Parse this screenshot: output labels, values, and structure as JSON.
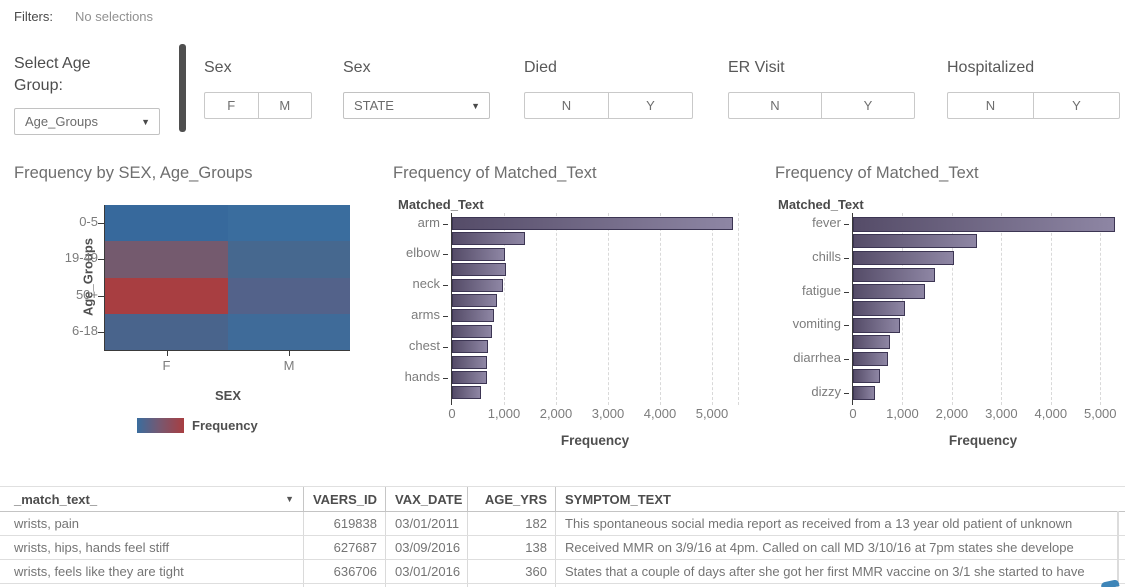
{
  "filters_bar": {
    "label": "Filters:",
    "value": "No selections"
  },
  "controls": {
    "age_group": {
      "label": "Select Age Group:",
      "value": "Age_Groups"
    },
    "sex_segmented": {
      "label": "Sex",
      "options": [
        "F",
        "M"
      ]
    },
    "sex_dropdown": {
      "label": "Sex",
      "value": "STATE"
    },
    "died": {
      "label": "Died",
      "options": [
        "N",
        "Y"
      ]
    },
    "er_visit": {
      "label": "ER Visit",
      "options": [
        "N",
        "Y"
      ]
    },
    "hospitalized": {
      "label": "Hospitalized",
      "options": [
        "N",
        "Y"
      ]
    }
  },
  "chart_data": [
    {
      "type": "heatmap",
      "title": "Frequency by SEX, Age_Groups",
      "xlabel": "SEX",
      "ylabel": "Age_Groups",
      "x": [
        "F",
        "M"
      ],
      "y": [
        "0-5",
        "19-49",
        "50+",
        "6-18"
      ],
      "cell_colors": [
        [
          "#37699c",
          "#3a6d9e"
        ],
        [
          "#745a6e",
          "#46688f"
        ],
        [
          "#a83e41",
          "#53628a"
        ],
        [
          "#49648c",
          "#3f6b99"
        ]
      ],
      "legend": {
        "label": "Frequency",
        "gradient": [
          "#3a6d9e",
          "#79576f",
          "#a83e41"
        ]
      }
    },
    {
      "type": "bar",
      "title": "Frequency of Matched_Text",
      "axis_field": "Matched_Text",
      "xlabel": "Frequency",
      "categories": [
        "arm",
        "",
        "elbow",
        "",
        "neck",
        "",
        "arms",
        "",
        "chest",
        "",
        "hands",
        ""
      ],
      "values": [
        5400,
        1400,
        1020,
        1040,
        990,
        860,
        810,
        770,
        700,
        670,
        670,
        560
      ],
      "xticks": [
        "0",
        "1,000",
        "2,000",
        "3,000",
        "4,000",
        "5,000"
      ],
      "xtick_values": [
        0,
        1000,
        2000,
        3000,
        4000,
        5000
      ],
      "xlim": [
        0,
        5500
      ],
      "grid": true,
      "legend_position": "none"
    },
    {
      "type": "bar",
      "title": "Frequency of Matched_Text",
      "axis_field": "Matched_Text",
      "xlabel": "Frequency",
      "categories": [
        "fever",
        "",
        "chills",
        "",
        "fatigue",
        "",
        "vomiting",
        "",
        "diarrhea",
        "",
        "dizzy"
      ],
      "values": [
        5300,
        2500,
        2050,
        1650,
        1450,
        1050,
        950,
        750,
        700,
        550,
        450
      ],
      "xticks": [
        "0",
        "1,000",
        "2,000",
        "3,000",
        "4,000",
        "5,000"
      ],
      "xtick_values": [
        0,
        1000,
        2000,
        3000,
        4000,
        5000
      ],
      "xlim": [
        0,
        5500
      ],
      "grid": true,
      "legend_position": "none"
    }
  ],
  "table": {
    "columns": [
      "_match_text_",
      "VAERS_ID",
      "VAX_DATE",
      "AGE_YRS",
      "SYMPTOM_TEXT"
    ],
    "sort_icon": "sort-descending-caret",
    "rows": [
      [
        "wrists, pain",
        "619838",
        "03/01/2011",
        "182",
        "This spontaneous social media report as received from a 13 year old patient of unknown"
      ],
      [
        "wrists, hips, hands feel stiff",
        "627687",
        "03/09/2016",
        "138",
        "Received MMR on 3/9/16 at 4pm. Called on call MD 3/10/16 at 7pm states she develope"
      ],
      [
        "wrists, feels like they are tight",
        "636706",
        "03/01/2016",
        "360",
        "States that a couple of days after she got her first MMR vaccine on 3/1 she started to have"
      ]
    ]
  },
  "colors": {
    "heat_blue": "#3a6d9e",
    "heat_red": "#a83e41",
    "bar_fill_dark": "#554c68",
    "bar_fill_light": "#8e86a4",
    "bar_border": "#3c3553",
    "corner_accent": "#3e85b8"
  }
}
